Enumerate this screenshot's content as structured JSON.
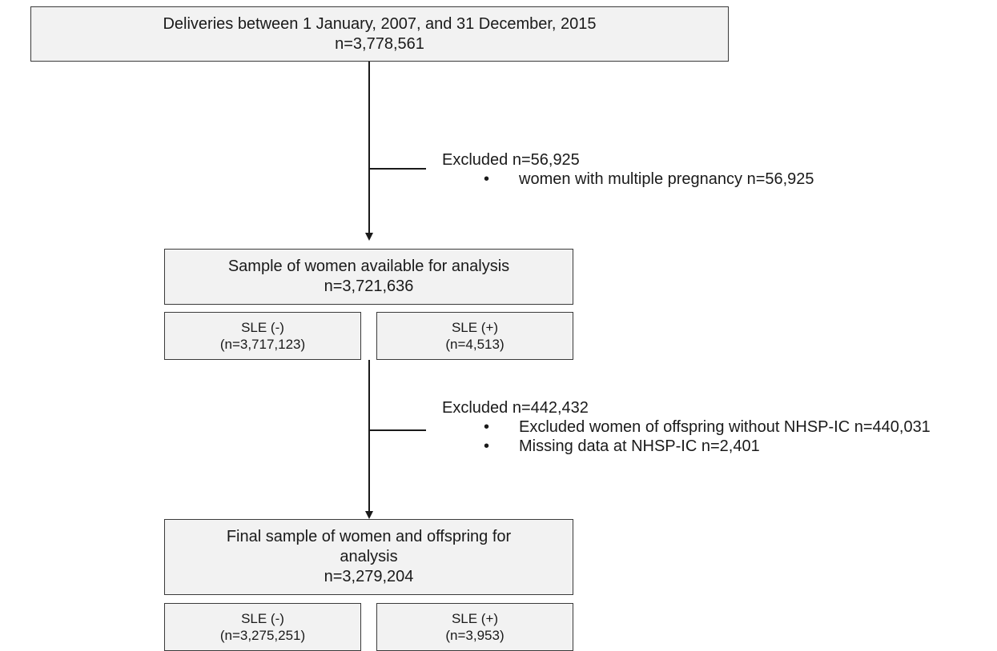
{
  "top_box": {
    "line1": "Deliveries between 1 January, 2007, and 31 December, 2015",
    "line2": "n=3,778,561"
  },
  "exclusion1": {
    "heading": "Excluded n=56,925",
    "items": [
      "women with multiple pregnancy n=56,925"
    ]
  },
  "sample_box": {
    "line1": "Sample of women available for analysis",
    "line2": "n=3,721,636"
  },
  "sample_groups": {
    "neg": {
      "label": "SLE (-)",
      "count": "(n=3,717,123)"
    },
    "pos": {
      "label": "SLE (+)",
      "count": "(n=4,513)"
    }
  },
  "exclusion2": {
    "heading": "Excluded n=442,432",
    "items": [
      "Excluded women of offspring without NHSP-IC n=440,031",
      "Missing data at NHSP-IC n=2,401"
    ]
  },
  "final_box": {
    "line1": "Final sample of women and offspring for",
    "line2": "analysis",
    "line3": "n=3,279,204"
  },
  "final_groups": {
    "neg": {
      "label": "SLE (-)",
      "count": "(n=3,275,251)"
    },
    "pos": {
      "label": "SLE (+)",
      "count": "(n=3,953)"
    }
  },
  "bullet_char": "•"
}
